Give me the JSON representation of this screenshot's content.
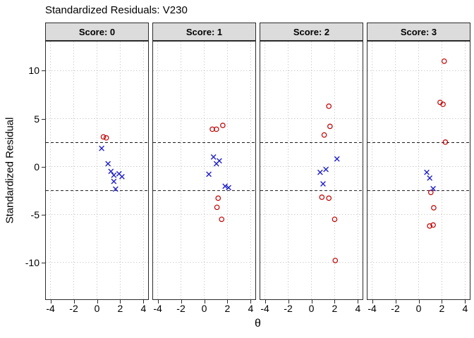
{
  "colors": {
    "extreme_point": "#c00000",
    "typical_point": "#2020c8",
    "strip_background": "#dcdcdc",
    "panel_border": "#2b2b2b",
    "grid_line": "#cfcfcf",
    "reference_line": "#1a1a1a"
  },
  "chart_data": {
    "type": "scatter",
    "title": "Standardized Residuals: V230",
    "xlabel": "θ",
    "ylabel": "Standardized Residual",
    "legend": "none",
    "axes": {
      "x_ticks": [
        -4,
        -2,
        0,
        2,
        4
      ],
      "y_ticks": [
        -10,
        -5,
        0,
        5,
        10
      ],
      "xlim": [
        -4.4,
        4.4
      ],
      "ylim": [
        -13.85,
        13.05
      ],
      "grid": "dotted at major ticks"
    },
    "reference_lines": {
      "y": [
        2.5,
        -2.5
      ],
      "style": "dashed"
    },
    "series_legend": {
      "circles": "residuals beyond ±2.5 (open red circles)",
      "xs": "residuals within ±2.5 (blue x)"
    },
    "facets": [
      {
        "label": "Score: 0",
        "circles": [
          [
            0.55,
            3.1
          ],
          [
            0.8,
            3.0
          ]
        ],
        "xs": [
          [
            0.4,
            1.9
          ],
          [
            0.95,
            0.3
          ],
          [
            1.2,
            -0.5
          ],
          [
            1.45,
            -0.9
          ],
          [
            1.9,
            -0.75
          ],
          [
            2.15,
            -1.05
          ],
          [
            1.45,
            -1.55
          ],
          [
            1.6,
            -2.35
          ]
        ]
      },
      {
        "label": "Score: 1",
        "circles": [
          [
            0.7,
            3.9
          ],
          [
            1.05,
            3.9
          ],
          [
            1.6,
            4.3
          ],
          [
            1.2,
            -3.3
          ],
          [
            1.1,
            -4.25
          ],
          [
            1.5,
            -5.5
          ]
        ],
        "xs": [
          [
            0.8,
            1.0
          ],
          [
            1.05,
            0.3
          ],
          [
            1.3,
            0.6
          ],
          [
            0.4,
            -0.8
          ],
          [
            1.8,
            -2.05
          ],
          [
            2.1,
            -2.2
          ]
        ]
      },
      {
        "label": "Score: 2",
        "circles": [
          [
            1.5,
            6.3
          ],
          [
            1.6,
            4.2
          ],
          [
            1.1,
            3.3
          ],
          [
            0.9,
            -3.2
          ],
          [
            1.5,
            -3.3
          ],
          [
            2.0,
            -5.5
          ],
          [
            2.05,
            -9.8
          ]
        ],
        "xs": [
          [
            0.75,
            -0.6
          ],
          [
            1.25,
            -0.3
          ],
          [
            2.2,
            0.8
          ],
          [
            1.0,
            -1.8
          ]
        ]
      },
      {
        "label": "Score: 3",
        "circles": [
          [
            2.2,
            11.0
          ],
          [
            1.85,
            6.7
          ],
          [
            2.1,
            6.5
          ],
          [
            2.3,
            2.55
          ],
          [
            1.05,
            -2.7
          ],
          [
            1.3,
            -4.3
          ],
          [
            0.95,
            -6.2
          ],
          [
            1.25,
            -6.1
          ]
        ],
        "xs": [
          [
            0.7,
            -0.6
          ],
          [
            0.95,
            -1.2
          ],
          [
            1.25,
            -2.3
          ]
        ]
      }
    ]
  }
}
